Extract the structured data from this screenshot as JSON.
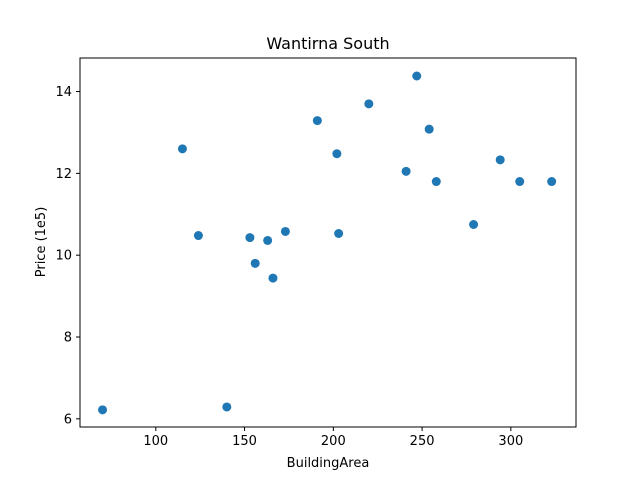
{
  "chart_data": {
    "type": "scatter",
    "title": "Wantirna South",
    "xlabel": "BuildingArea",
    "ylabel": "Price (1e5)",
    "xlim": [
      57.3,
      336.7
    ],
    "ylim": [
      5.8,
      14.82
    ],
    "xticks": [
      100,
      150,
      200,
      250,
      300
    ],
    "yticks": [
      6,
      8,
      10,
      12,
      14
    ],
    "xtick_labels": [
      "100",
      "150",
      "200",
      "250",
      "300"
    ],
    "ytick_labels": [
      "6",
      "8",
      "10",
      "12",
      "14"
    ],
    "marker_color": "#1f77b4",
    "grid": false,
    "points": [
      {
        "x": 70,
        "y": 6.22
      },
      {
        "x": 115,
        "y": 12.6
      },
      {
        "x": 124,
        "y": 10.48
      },
      {
        "x": 140,
        "y": 6.29
      },
      {
        "x": 153,
        "y": 10.43
      },
      {
        "x": 156,
        "y": 9.8
      },
      {
        "x": 163,
        "y": 10.36
      },
      {
        "x": 166,
        "y": 9.44
      },
      {
        "x": 173,
        "y": 10.58
      },
      {
        "x": 191,
        "y": 13.29
      },
      {
        "x": 202,
        "y": 12.48
      },
      {
        "x": 203,
        "y": 10.53
      },
      {
        "x": 220,
        "y": 13.7
      },
      {
        "x": 241,
        "y": 12.05
      },
      {
        "x": 247,
        "y": 14.38
      },
      {
        "x": 254,
        "y": 13.08
      },
      {
        "x": 258,
        "y": 11.8
      },
      {
        "x": 279,
        "y": 10.75
      },
      {
        "x": 294,
        "y": 12.33
      },
      {
        "x": 305,
        "y": 11.8
      },
      {
        "x": 323,
        "y": 11.8
      }
    ]
  }
}
